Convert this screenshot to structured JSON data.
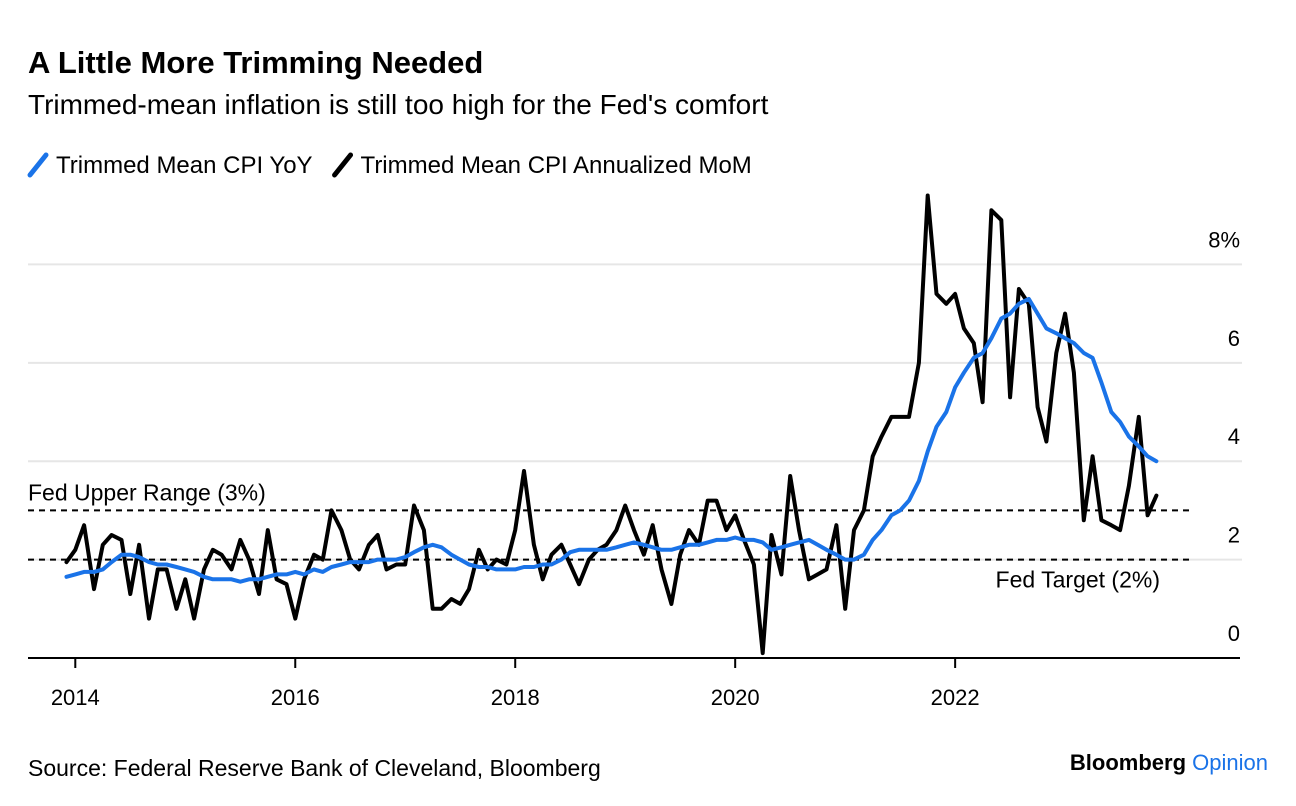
{
  "chart_data": {
    "type": "line",
    "title": "A Little More Trimming Needed",
    "subtitle": "Trimmed-mean inflation is still too high for the Fed's comfort",
    "source": "Source: Federal Reserve Bank of Cleveland, Bloomberg",
    "brand": {
      "name": "Bloomberg",
      "section": "Opinion"
    },
    "x": [
      2013.92,
      2014.0,
      2014.08,
      2014.17,
      2014.25,
      2014.33,
      2014.42,
      2014.5,
      2014.58,
      2014.67,
      2014.75,
      2014.83,
      2014.92,
      2015.0,
      2015.08,
      2015.17,
      2015.25,
      2015.33,
      2015.42,
      2015.5,
      2015.58,
      2015.67,
      2015.75,
      2015.83,
      2015.92,
      2016.0,
      2016.08,
      2016.17,
      2016.25,
      2016.33,
      2016.42,
      2016.5,
      2016.58,
      2016.67,
      2016.75,
      2016.83,
      2016.92,
      2017.0,
      2017.08,
      2017.17,
      2017.25,
      2017.33,
      2017.42,
      2017.5,
      2017.58,
      2017.67,
      2017.75,
      2017.83,
      2017.92,
      2018.0,
      2018.08,
      2018.17,
      2018.25,
      2018.33,
      2018.42,
      2018.5,
      2018.58,
      2018.67,
      2018.75,
      2018.83,
      2018.92,
      2019.0,
      2019.08,
      2019.17,
      2019.25,
      2019.33,
      2019.42,
      2019.5,
      2019.58,
      2019.67,
      2019.75,
      2019.83,
      2019.92,
      2020.0,
      2020.08,
      2020.17,
      2020.25,
      2020.33,
      2020.42,
      2020.5,
      2020.58,
      2020.67,
      2020.75,
      2020.83,
      2020.92,
      2021.0,
      2021.08,
      2021.17,
      2021.25,
      2021.33,
      2021.42,
      2021.5,
      2021.58,
      2021.67,
      2021.75,
      2021.83,
      2021.92,
      2022.0,
      2022.08,
      2022.17,
      2022.25,
      2022.33,
      2022.42,
      2022.5,
      2022.58,
      2022.67,
      2022.75,
      2022.83,
      2022.92,
      2023.0,
      2023.08,
      2023.17,
      2023.25,
      2023.33,
      2023.42,
      2023.5,
      2023.58,
      2023.67,
      2023.75,
      2023.83
    ],
    "series": [
      {
        "name": "Trimmed Mean CPI YoY",
        "color": "#1a73e8",
        "values": [
          1.65,
          1.7,
          1.75,
          1.75,
          1.8,
          1.95,
          2.1,
          2.1,
          2.05,
          1.95,
          1.9,
          1.9,
          1.85,
          1.8,
          1.75,
          1.65,
          1.6,
          1.6,
          1.6,
          1.55,
          1.6,
          1.6,
          1.65,
          1.7,
          1.7,
          1.75,
          1.7,
          1.8,
          1.75,
          1.85,
          1.9,
          1.95,
          1.95,
          1.95,
          2.0,
          2.0,
          2.0,
          2.05,
          2.15,
          2.25,
          2.3,
          2.25,
          2.1,
          2.0,
          1.9,
          1.85,
          1.85,
          1.8,
          1.8,
          1.8,
          1.85,
          1.85,
          1.9,
          1.9,
          2.0,
          2.15,
          2.2,
          2.2,
          2.2,
          2.2,
          2.25,
          2.3,
          2.35,
          2.3,
          2.25,
          2.2,
          2.2,
          2.25,
          2.3,
          2.3,
          2.35,
          2.4,
          2.4,
          2.45,
          2.4,
          2.4,
          2.35,
          2.2,
          2.25,
          2.3,
          2.35,
          2.4,
          2.3,
          2.2,
          2.1,
          2.0,
          2.0,
          2.1,
          2.4,
          2.6,
          2.9,
          3.0,
          3.2,
          3.6,
          4.2,
          4.7,
          5.0,
          5.5,
          5.8,
          6.1,
          6.2,
          6.5,
          6.9,
          7.0,
          7.2,
          7.3,
          7.0,
          6.7,
          6.6,
          6.5,
          6.4,
          6.2,
          6.1,
          5.6,
          5.0,
          4.8,
          4.5,
          4.3,
          4.1,
          4.0
        ]
      },
      {
        "name": "Trimmed Mean CPI Annualized MoM",
        "color": "#000000",
        "values": [
          1.95,
          2.2,
          2.7,
          1.4,
          2.3,
          2.5,
          2.4,
          1.3,
          2.3,
          0.8,
          1.8,
          1.8,
          1.0,
          1.6,
          0.8,
          1.8,
          2.2,
          2.1,
          1.8,
          2.4,
          2.0,
          1.3,
          2.6,
          1.6,
          1.5,
          0.8,
          1.6,
          2.1,
          2.0,
          3.0,
          2.6,
          2.0,
          1.8,
          2.3,
          2.5,
          1.8,
          1.9,
          1.9,
          3.1,
          2.6,
          1.0,
          1.0,
          1.2,
          1.1,
          1.4,
          2.2,
          1.8,
          2.0,
          1.9,
          2.6,
          3.8,
          2.3,
          1.6,
          2.1,
          2.3,
          1.9,
          1.5,
          2.0,
          2.2,
          2.3,
          2.6,
          3.1,
          2.6,
          2.1,
          2.7,
          1.8,
          1.1,
          2.1,
          2.6,
          2.3,
          3.2,
          3.2,
          2.6,
          2.9,
          2.4,
          1.9,
          0.1,
          2.5,
          1.7,
          3.7,
          2.6,
          1.6,
          1.7,
          1.8,
          2.7,
          1.0,
          2.6,
          3.0,
          4.1,
          4.5,
          4.9,
          4.9,
          4.9,
          6.0,
          9.4,
          7.4,
          7.2,
          7.4,
          6.7,
          6.4,
          5.2,
          9.1,
          8.9,
          5.3,
          7.5,
          7.2,
          5.1,
          4.4,
          6.2,
          7.0,
          5.8,
          2.8,
          4.1,
          2.8,
          2.7,
          2.6,
          3.5,
          4.9,
          2.9,
          3.3
        ]
      }
    ],
    "reference_lines": [
      {
        "value": 3,
        "label": "Fed Upper Range (3%)"
      },
      {
        "value": 2,
        "label": "Fed Target (2%)"
      }
    ],
    "xlim": [
      2013.57,
      2024.59
    ],
    "xticks": [
      2014,
      2016,
      2018,
      2020,
      2022
    ],
    "ylim": [
      0,
      9.6
    ],
    "yticks": [
      0,
      2,
      4,
      6,
      {
        "value": 8,
        "label": "8%"
      }
    ],
    "grid": true
  }
}
